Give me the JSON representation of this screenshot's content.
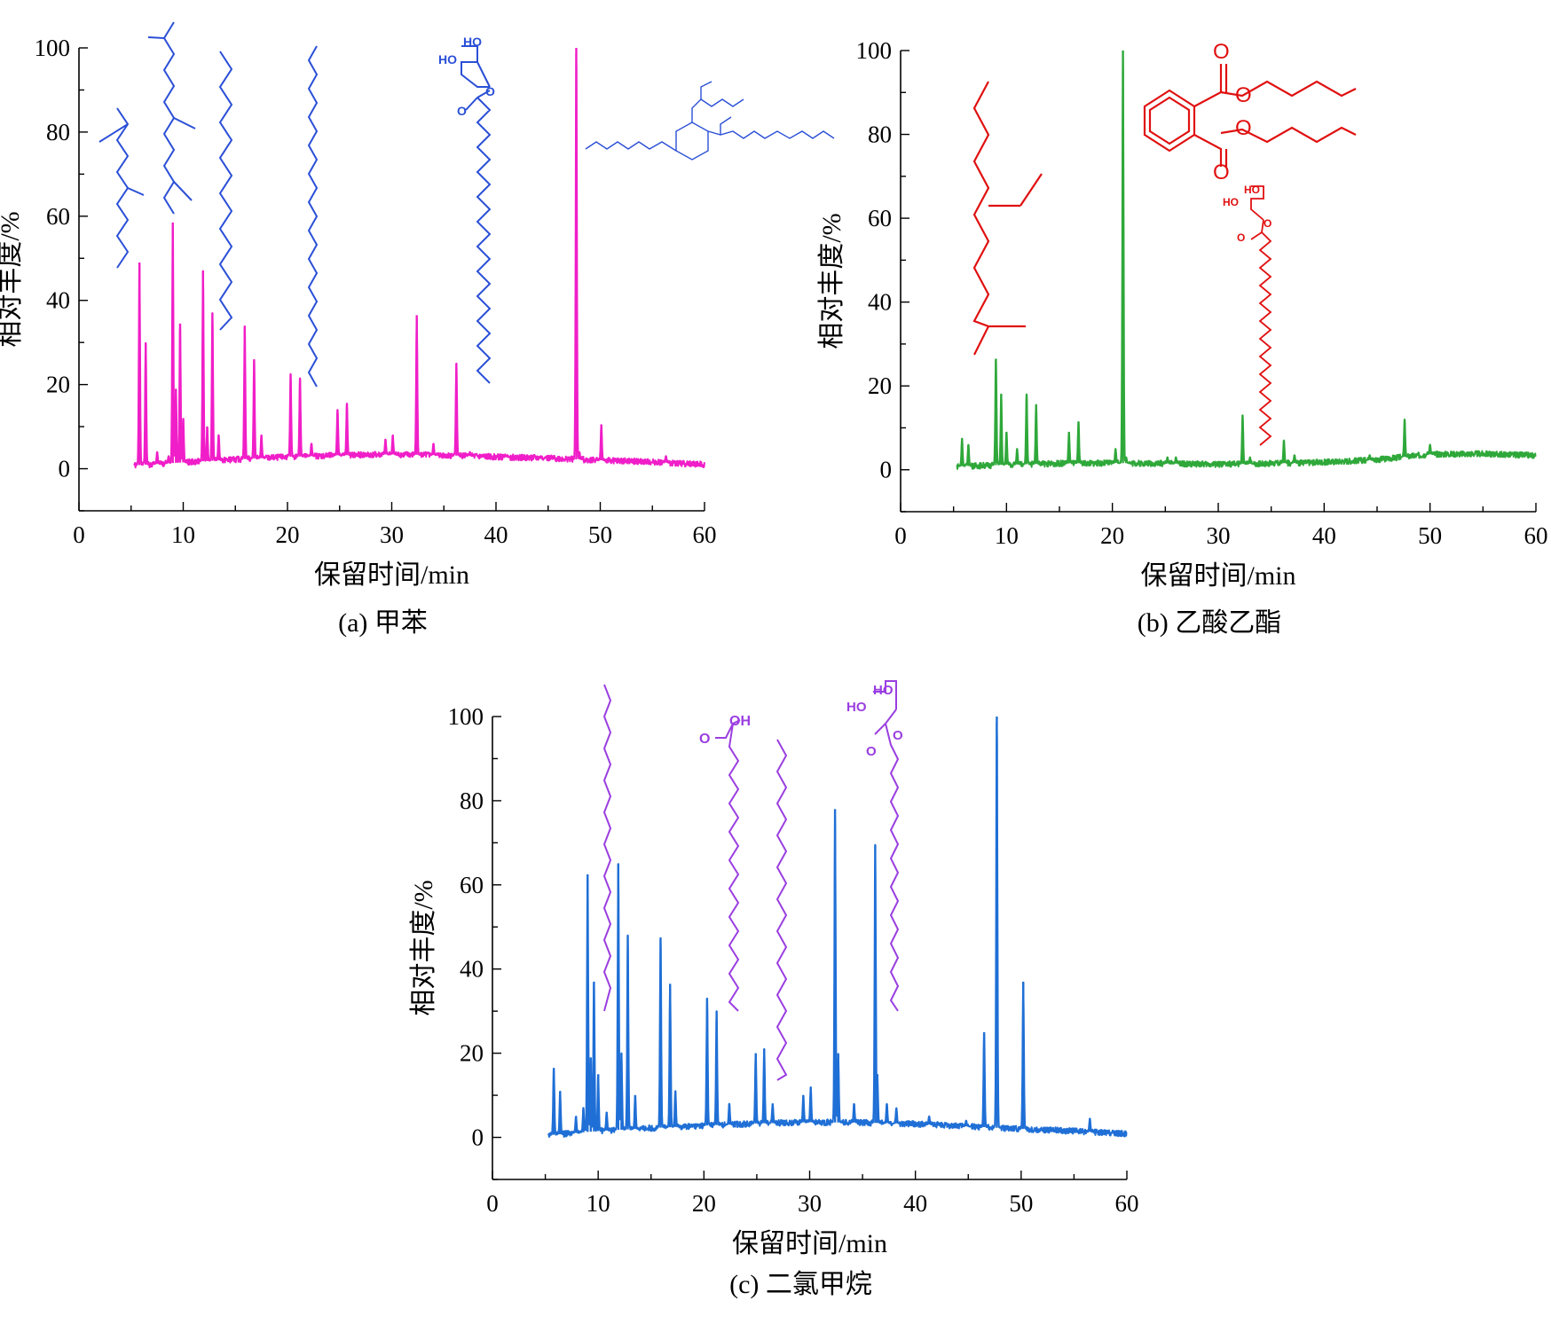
{
  "chart_data": [
    {
      "id": "a",
      "type": "line",
      "caption": "(a) 甲苯",
      "xlabel": "保留时间/min",
      "ylabel": "相对丰度/%",
      "xlim": [
        0,
        60
      ],
      "ylim": [
        -10,
        100
      ],
      "xticks": [
        "0",
        "10",
        "20",
        "30",
        "40",
        "50",
        "60"
      ],
      "yticks": [
        "0",
        "20",
        "40",
        "60",
        "80",
        "100"
      ],
      "colors": {
        "trace": "#f01ec8",
        "structures": "#2a4fd6"
      },
      "structure_icons": [
        "branched-alkane-icon",
        "branched-alkane-icon",
        "n-alkane-icon",
        "n-alkane-icon",
        "monoacylglycerol-icon",
        "triester-icon"
      ],
      "series": [
        {
          "baseline": [
            [
              5.3,
              0.8
            ],
            [
              10,
              1.5
            ],
            [
              15,
              2.2
            ],
            [
              20,
              2.8
            ],
            [
              25,
              3.2
            ],
            [
              30,
              3.4
            ],
            [
              35,
              3.2
            ],
            [
              40,
              2.8
            ],
            [
              45,
              2.5
            ],
            [
              50,
              2.0
            ],
            [
              55,
              1.6
            ],
            [
              60,
              1.0
            ]
          ],
          "peaks": [
            [
              5.8,
              49
            ],
            [
              6.4,
              30
            ],
            [
              7.5,
              4
            ],
            [
              8.6,
              3
            ],
            [
              9.0,
              58.5
            ],
            [
              9.3,
              19
            ],
            [
              9.7,
              34.5
            ],
            [
              10.0,
              12
            ],
            [
              11.9,
              47
            ],
            [
              12.3,
              10
            ],
            [
              12.8,
              37
            ],
            [
              13.4,
              8
            ],
            [
              15.9,
              34
            ],
            [
              16.8,
              26
            ],
            [
              17.5,
              8
            ],
            [
              20.3,
              22.5
            ],
            [
              21.2,
              21.5
            ],
            [
              22.3,
              6
            ],
            [
              24.8,
              14
            ],
            [
              25.7,
              15.5
            ],
            [
              29.4,
              7
            ],
            [
              30.1,
              8
            ],
            [
              32.4,
              36.5
            ],
            [
              34.0,
              6
            ],
            [
              36.2,
              25
            ],
            [
              37.5,
              4
            ],
            [
              41.0,
              3
            ],
            [
              44.5,
              2
            ],
            [
              47.7,
              100
            ],
            [
              48.0,
              4
            ],
            [
              50.1,
              10.5
            ],
            [
              56.3,
              3
            ]
          ]
        }
      ]
    },
    {
      "id": "b",
      "type": "line",
      "caption": "(b) 乙酸乙酯",
      "xlabel": "保留时间/min",
      "ylabel": "相对丰度/%",
      "xlim": [
        0,
        60
      ],
      "ylim": [
        -10,
        100
      ],
      "xticks": [
        "0",
        "10",
        "20",
        "30",
        "40",
        "50",
        "60"
      ],
      "yticks": [
        "0",
        "20",
        "40",
        "60",
        "80",
        "100"
      ],
      "colors": {
        "trace": "#2fa83a",
        "structures": "#e01010"
      },
      "structure_icons": [
        "branched-alkane-icon",
        "dibutyl-phthalate-icon",
        "monoacylglycerol-icon"
      ],
      "structure_text": {
        "o1": "O",
        "o2": "O",
        "o3": "O",
        "o4": "O",
        "ho1": "HO",
        "ho2": "HO",
        "o5": "O",
        "o6": "O"
      },
      "series": [
        {
          "baseline": [
            [
              5.3,
              0.8
            ],
            [
              10,
              1.2
            ],
            [
              15,
              1.5
            ],
            [
              20,
              1.6
            ],
            [
              25,
              1.5
            ],
            [
              30,
              1.3
            ],
            [
              35,
              1.5
            ],
            [
              40,
              1.8
            ],
            [
              45,
              2.4
            ],
            [
              50,
              3.7
            ],
            [
              55,
              3.8
            ],
            [
              60,
              3.4
            ]
          ],
          "peaks": [
            [
              5.8,
              7.5
            ],
            [
              6.4,
              6
            ],
            [
              9.0,
              26.5
            ],
            [
              9.5,
              18
            ],
            [
              10.0,
              9
            ],
            [
              11.0,
              5
            ],
            [
              11.9,
              18
            ],
            [
              12.8,
              15.5
            ],
            [
              15.9,
              9
            ],
            [
              16.8,
              11.5
            ],
            [
              20.3,
              5
            ],
            [
              21.0,
              100
            ],
            [
              21.3,
              3
            ],
            [
              25.2,
              3
            ],
            [
              26.0,
              3
            ],
            [
              32.3,
              13
            ],
            [
              33.0,
              3
            ],
            [
              36.2,
              7
            ],
            [
              37.2,
              3.5
            ],
            [
              44.3,
              3.5
            ],
            [
              47.6,
              12
            ],
            [
              50.0,
              6
            ]
          ]
        }
      ]
    },
    {
      "id": "c",
      "type": "line",
      "caption": "(c) 二氯甲烷",
      "xlabel": "保留时间/min",
      "ylabel": "相对丰度/%",
      "xlim": [
        0,
        60
      ],
      "ylim": [
        -10,
        100
      ],
      "xticks": [
        "0",
        "10",
        "20",
        "30",
        "40",
        "50",
        "60"
      ],
      "yticks": [
        "0",
        "20",
        "40",
        "60",
        "80",
        "100"
      ],
      "colors": {
        "trace": "#1f6fd6",
        "structures": "#9a3ee0"
      },
      "structure_icons": [
        "n-alkane-icon",
        "fatty-acid-icon",
        "n-alkane-icon",
        "monoacylglycerol-icon"
      ],
      "structure_text": {
        "o1": "O",
        "oh1": "OH",
        "ho1": "HO",
        "ho2": "HO",
        "o2": "O",
        "o3": "O"
      },
      "series": [
        {
          "baseline": [
            [
              5.3,
              0.5
            ],
            [
              10,
              1.5
            ],
            [
              15,
              2.2
            ],
            [
              20,
              2.8
            ],
            [
              25,
              3.3
            ],
            [
              30,
              3.6
            ],
            [
              35,
              3.5
            ],
            [
              40,
              3.2
            ],
            [
              45,
              2.6
            ],
            [
              50,
              2.0
            ],
            [
              55,
              1.5
            ],
            [
              60,
              0.8
            ]
          ],
          "peaks": [
            [
              5.8,
              16.5
            ],
            [
              6.4,
              11
            ],
            [
              7.9,
              5
            ],
            [
              8.6,
              7
            ],
            [
              9.0,
              62.5
            ],
            [
              9.3,
              19
            ],
            [
              9.6,
              37
            ],
            [
              10.0,
              15
            ],
            [
              10.8,
              6
            ],
            [
              11.9,
              65
            ],
            [
              12.2,
              20
            ],
            [
              12.8,
              48
            ],
            [
              13.5,
              10
            ],
            [
              15.9,
              47.5
            ],
            [
              16.8,
              36.5
            ],
            [
              17.3,
              11
            ],
            [
              20.3,
              33
            ],
            [
              21.2,
              30
            ],
            [
              22.4,
              8
            ],
            [
              24.9,
              20
            ],
            [
              25.7,
              21
            ],
            [
              26.5,
              8
            ],
            [
              29.4,
              10
            ],
            [
              30.1,
              12
            ],
            [
              32.4,
              78
            ],
            [
              32.7,
              20
            ],
            [
              34.2,
              8
            ],
            [
              36.2,
              69.5
            ],
            [
              36.4,
              15
            ],
            [
              37.3,
              8
            ],
            [
              38.2,
              7
            ],
            [
              41.3,
              5
            ],
            [
              44.8,
              4
            ],
            [
              46.5,
              25
            ],
            [
              47.7,
              100
            ],
            [
              50.2,
              37
            ],
            [
              56.5,
              4.5
            ]
          ]
        }
      ]
    }
  ]
}
